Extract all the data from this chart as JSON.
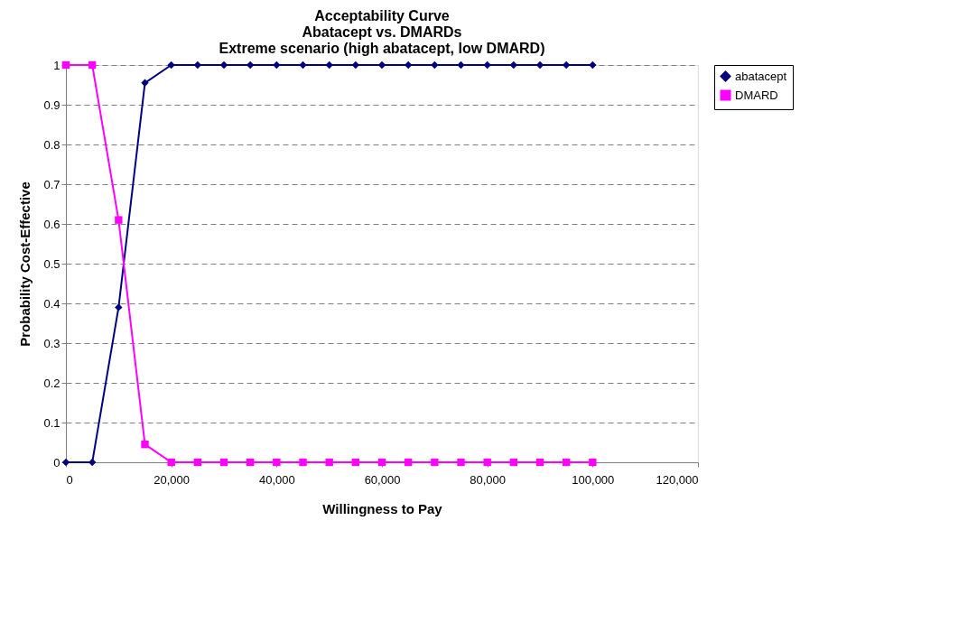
{
  "chart_data": {
    "type": "line",
    "title": [
      "Acceptability Curve",
      "Abatacept vs. DMARDs",
      "Extreme scenario (high abatacept, low DMARD)"
    ],
    "xlabel": "Willingness to Pay",
    "ylabel": "Probability Cost-Effective",
    "x": [
      0,
      5000,
      10000,
      15000,
      20000,
      25000,
      30000,
      35000,
      40000,
      45000,
      50000,
      55000,
      60000,
      65000,
      70000,
      75000,
      80000,
      85000,
      90000,
      95000,
      100000
    ],
    "series": [
      {
        "name": "abatacept",
        "color": "#000080",
        "marker": "diamond",
        "values": [
          0,
          0,
          0.39,
          0.955,
          1,
          1,
          1,
          1,
          1,
          1,
          1,
          1,
          1,
          1,
          1,
          1,
          1,
          1,
          1,
          1,
          1
        ]
      },
      {
        "name": "DMARD",
        "color": "#ff00ff",
        "marker": "square",
        "values": [
          1,
          1,
          0.61,
          0.045,
          0,
          0,
          0,
          0,
          0,
          0,
          0,
          0,
          0,
          0,
          0,
          0,
          0,
          0,
          0,
          0,
          0
        ]
      }
    ],
    "xlim": [
      0,
      120000
    ],
    "xticks": [
      0,
      {
        "value": 20000,
        "label": "20,000"
      },
      {
        "value": 40000,
        "label": "40,000"
      },
      {
        "value": 60000,
        "label": "60,000"
      },
      {
        "value": 80000,
        "label": "80,000"
      },
      {
        "value": 100000,
        "label": "100,000"
      },
      {
        "value": 120000,
        "label": "120,000"
      }
    ],
    "ylim": [
      0,
      1
    ],
    "yticks": [
      0,
      0.1,
      0.2,
      0.3,
      0.4,
      0.5,
      0.6,
      0.7,
      0.8,
      0.9,
      1
    ],
    "grid": "y",
    "legend": "right",
    "line_style": "solid"
  }
}
